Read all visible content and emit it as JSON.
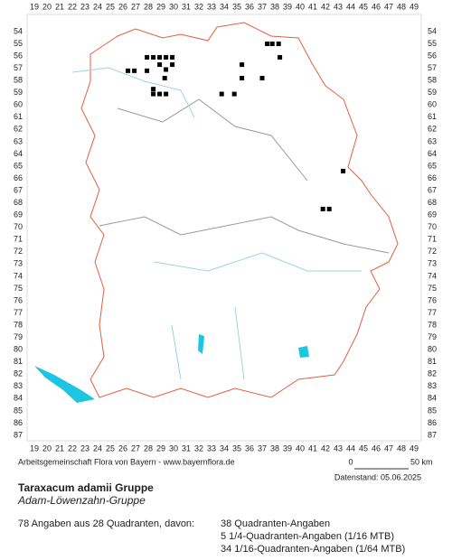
{
  "grid": {
    "columns": [
      19,
      20,
      21,
      22,
      23,
      24,
      25,
      26,
      27,
      28,
      29,
      30,
      31,
      32,
      33,
      34,
      35,
      36,
      37,
      38,
      39,
      40,
      41,
      42,
      43,
      44,
      45,
      46,
      47,
      48,
      49
    ],
    "rows": [
      54,
      55,
      56,
      57,
      58,
      59,
      60,
      61,
      62,
      63,
      64,
      65,
      66,
      67,
      68,
      69,
      70,
      71,
      72,
      73,
      74,
      75,
      76,
      77,
      78,
      79,
      80,
      81,
      82,
      83,
      84,
      85,
      86,
      87
    ]
  },
  "records": [
    {
      "x": 37.4,
      "y": 55.0
    },
    {
      "x": 37.8,
      "y": 55.0
    },
    {
      "x": 38.3,
      "y": 55.0
    },
    {
      "x": 27.9,
      "y": 56.1
    },
    {
      "x": 28.4,
      "y": 56.1
    },
    {
      "x": 28.9,
      "y": 56.1
    },
    {
      "x": 29.4,
      "y": 56.1
    },
    {
      "x": 29.9,
      "y": 56.1
    },
    {
      "x": 38.4,
      "y": 56.1
    },
    {
      "x": 28.9,
      "y": 56.7
    },
    {
      "x": 29.9,
      "y": 56.7
    },
    {
      "x": 35.4,
      "y": 56.7
    },
    {
      "x": 26.4,
      "y": 57.2
    },
    {
      "x": 26.9,
      "y": 57.2
    },
    {
      "x": 27.9,
      "y": 57.2
    },
    {
      "x": 29.4,
      "y": 57.1
    },
    {
      "x": 29.3,
      "y": 57.8
    },
    {
      "x": 35.4,
      "y": 57.8
    },
    {
      "x": 37.0,
      "y": 57.8
    },
    {
      "x": 28.4,
      "y": 58.7
    },
    {
      "x": 28.4,
      "y": 59.1
    },
    {
      "x": 28.9,
      "y": 59.1
    },
    {
      "x": 29.4,
      "y": 59.1
    },
    {
      "x": 33.8,
      "y": 59.1
    },
    {
      "x": 34.8,
      "y": 59.1
    },
    {
      "x": 43.4,
      "y": 65.4
    },
    {
      "x": 41.8,
      "y": 68.5
    },
    {
      "x": 42.3,
      "y": 68.5
    }
  ],
  "footer": {
    "credit": "Arbeitsgemeinschaft Flora von Bayern - www.bayernflora.de",
    "scale_start": "0",
    "scale_end": "50 km",
    "date": "Datenstand: 05.06.2025"
  },
  "taxon": {
    "name": "Taraxacum adamii Gruppe",
    "common_name": "Adam-Löwenzahn-Gruppe"
  },
  "summary": {
    "total": "78 Angaben aus 28 Quadranten, davon:",
    "lines": [
      "38 Quadranten-Angaben",
      "5 1/4-Quadranten-Angaben (1/16 MTB)",
      "34 1/16-Quadranten-Angaben (1/64 MTB)"
    ]
  }
}
